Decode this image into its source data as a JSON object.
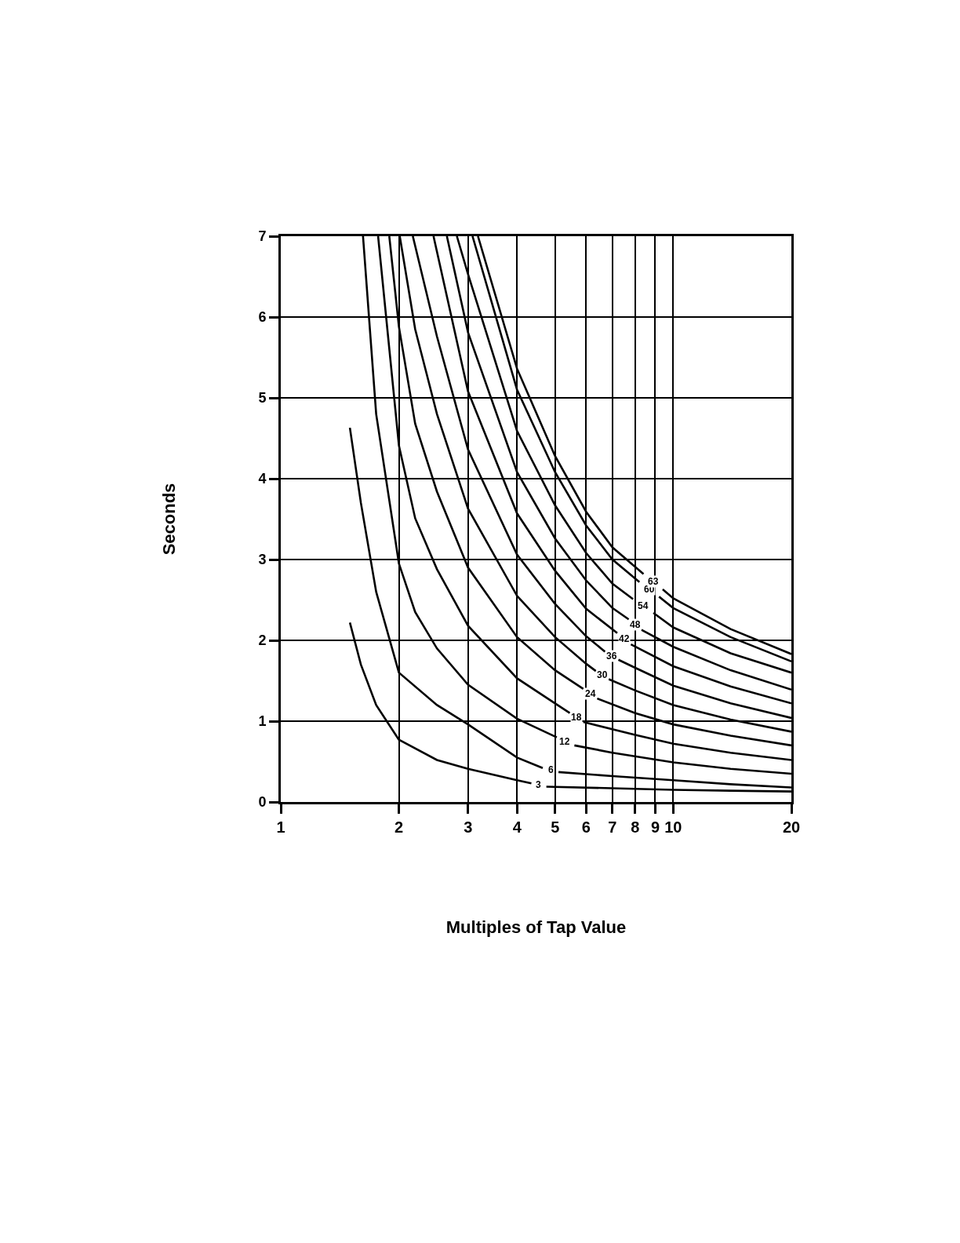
{
  "chart_data": {
    "type": "line",
    "xlabel": "Multiples of Tap Value",
    "ylabel": "Seconds",
    "log": "x",
    "xlim": [
      1,
      20
    ],
    "ylim": [
      0,
      7
    ],
    "xticks": [
      1,
      2,
      3,
      4,
      5,
      6,
      7,
      8,
      9,
      10,
      20
    ],
    "yticks": [
      0,
      1,
      2,
      3,
      4,
      5,
      6,
      7
    ],
    "grid": true,
    "legend": false,
    "line_style": "solid",
    "marker": "none",
    "series": [
      {
        "name": "3",
        "color": "#000000",
        "x": [
          1.5,
          1.6,
          1.75,
          2,
          2.5,
          3,
          4,
          4.35,
          4.54,
          4.75,
          7,
          10,
          14,
          20
        ],
        "values": [
          2.22,
          1.7,
          1.2,
          0.77,
          0.52,
          0.41,
          0.27,
          0.23,
          null,
          0.19,
          0.17,
          0.15,
          0.14,
          0.13
        ]
      },
      {
        "name": "6",
        "color": "#000000",
        "x": [
          1.5,
          1.6,
          1.75,
          2,
          2.5,
          3,
          4,
          4.65,
          4.87,
          5.1,
          7,
          10,
          14,
          20
        ],
        "values": [
          4.63,
          3.7,
          2.6,
          1.6,
          1.2,
          0.96,
          0.55,
          0.42,
          null,
          0.37,
          0.32,
          0.27,
          0.22,
          0.18
        ]
      },
      {
        "name": "12",
        "color": "#000000",
        "x": [
          1.62,
          1.75,
          2,
          2.2,
          2.5,
          3,
          4,
          5.05,
          5.3,
          5.6,
          7,
          10,
          14,
          20
        ],
        "values": [
          7,
          4.8,
          2.95,
          2.35,
          1.9,
          1.45,
          1.03,
          0.8,
          null,
          0.7,
          0.61,
          0.49,
          0.41,
          0.35
        ]
      },
      {
        "name": "18",
        "color": "#000000",
        "x": [
          1.77,
          2,
          2.2,
          2.5,
          3,
          4,
          5,
          5.45,
          5.67,
          5.9,
          8,
          10,
          14,
          20
        ],
        "values": [
          7,
          4.41,
          3.51,
          2.88,
          2.18,
          1.53,
          1.22,
          1.1,
          null,
          0.99,
          0.83,
          0.72,
          0.61,
          0.52
        ]
      },
      {
        "name": "24",
        "color": "#000000",
        "x": [
          1.89,
          2,
          2.2,
          2.5,
          3,
          4,
          5,
          5.9,
          6.15,
          6.4,
          8,
          10,
          14,
          20
        ],
        "values": [
          7,
          5.88,
          4.68,
          3.84,
          2.9,
          2.04,
          1.63,
          1.4,
          null,
          1.28,
          1.1,
          0.96,
          0.82,
          0.7
        ]
      },
      {
        "name": "30",
        "color": "#000000",
        "x": [
          2.01,
          2.2,
          2.5,
          3,
          4,
          5,
          6,
          6.35,
          6.6,
          6.85,
          8,
          10,
          14,
          20
        ],
        "values": [
          7,
          5.85,
          4.8,
          3.63,
          2.55,
          2.04,
          1.71,
          1.62,
          null,
          1.52,
          1.38,
          1.2,
          1.02,
          0.87
        ]
      },
      {
        "name": "36",
        "color": "#000000",
        "x": [
          2.17,
          2.5,
          3,
          4,
          5,
          6,
          6.7,
          6.97,
          7.25,
          8,
          10,
          14,
          20
        ],
        "values": [
          7,
          5.76,
          4.36,
          3.06,
          2.45,
          2.05,
          1.86,
          null,
          1.76,
          1.66,
          1.44,
          1.22,
          1.04
        ]
      },
      {
        "name": "42",
        "color": "#000000",
        "x": [
          2.45,
          3,
          4,
          5,
          6,
          7.2,
          7.5,
          7.8,
          10,
          14,
          20
        ],
        "values": [
          7,
          5.08,
          3.57,
          2.86,
          2.39,
          2.09,
          null,
          1.95,
          1.68,
          1.43,
          1.22
        ]
      },
      {
        "name": "48",
        "color": "#000000",
        "x": [
          2.65,
          3,
          4,
          5,
          6,
          7,
          7.7,
          8.0,
          8.3,
          10,
          14,
          20
        ],
        "values": [
          7,
          5.81,
          4.08,
          3.26,
          2.74,
          2.4,
          2.26,
          null,
          2.13,
          1.92,
          1.63,
          1.39
        ]
      },
      {
        "name": "54",
        "color": "#000000",
        "x": [
          2.81,
          3,
          4,
          5,
          6,
          7,
          7.9,
          8.4,
          8.9,
          10,
          14,
          20
        ],
        "values": [
          7,
          6.53,
          4.59,
          3.67,
          3.08,
          2.7,
          2.51,
          null,
          2.34,
          2.16,
          1.84,
          1.6
        ]
      },
      {
        "name": "60",
        "color": "#000000",
        "x": [
          3.08,
          4,
          5,
          6,
          7,
          8.2,
          8.7,
          9.2,
          10,
          14,
          20
        ],
        "values": [
          7,
          5.1,
          4.08,
          3.42,
          3.0,
          2.72,
          null,
          2.54,
          2.4,
          2.04,
          1.74
        ]
      },
      {
        "name": "63",
        "color": "#000000",
        "x": [
          3.18,
          4,
          5,
          6,
          7,
          8.4,
          8.9,
          9.4,
          10,
          14,
          20
        ],
        "values": [
          7,
          5.36,
          4.28,
          3.59,
          3.15,
          2.82,
          null,
          2.63,
          2.52,
          2.14,
          1.83
        ]
      }
    ]
  }
}
